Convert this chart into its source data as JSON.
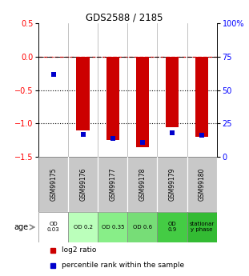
{
  "title": "GDS2588 / 2185",
  "samples": [
    "GSM99175",
    "GSM99176",
    "GSM99177",
    "GSM99178",
    "GSM99179",
    "GSM99180"
  ],
  "log2_ratio": [
    0.0,
    -1.1,
    -1.25,
    -1.35,
    -1.05,
    -1.2
  ],
  "percentile_rank": [
    62,
    17,
    14,
    11,
    18,
    16
  ],
  "bar_color": "#cc0000",
  "dot_color": "#0000cc",
  "ylim_left": [
    -1.5,
    0.5
  ],
  "ylim_right": [
    0,
    100
  ],
  "yticks_left": [
    0.5,
    0.0,
    -0.5,
    -1.0,
    -1.5
  ],
  "yticks_right": [
    100,
    75,
    50,
    25,
    0
  ],
  "dotline_y": [
    -0.5,
    -1.0
  ],
  "sample_labels": [
    "OD\n0.03",
    "OD 0.2",
    "OD 0.35",
    "OD 0.6",
    "OD\n0.9",
    "stationar\ny phase"
  ],
  "sample_bg_colors": [
    "#ffffff",
    "#bbffbb",
    "#88ee88",
    "#77dd77",
    "#44cc44",
    "#33bb33"
  ],
  "sample_header_color": "#c8c8c8",
  "age_label": "age",
  "legend_red": "log2 ratio",
  "legend_blue": "percentile rank within the sample",
  "bar_width": 0.45
}
